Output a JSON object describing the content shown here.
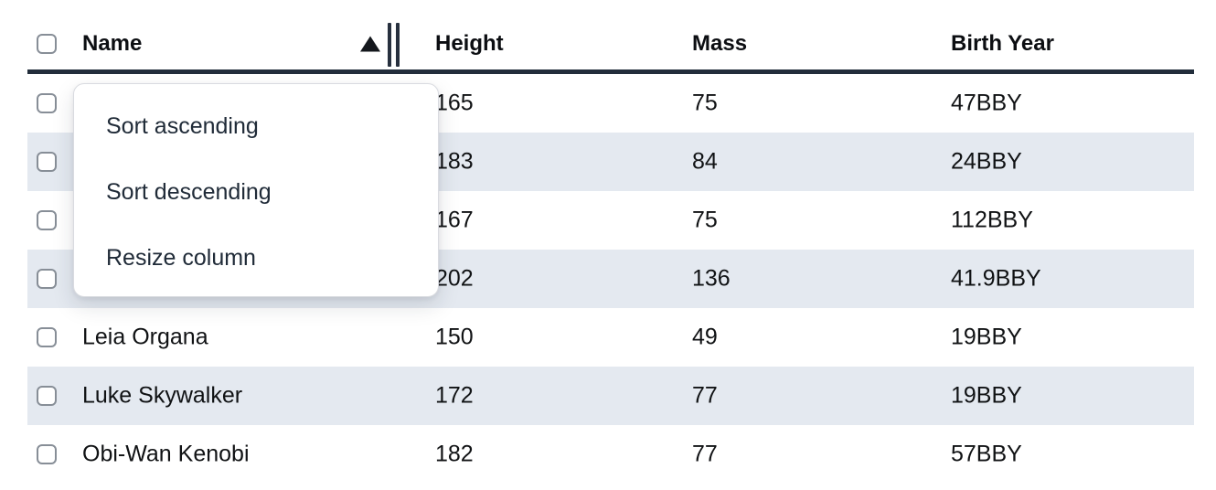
{
  "table": {
    "columns": [
      {
        "id": "name",
        "label": "Name"
      },
      {
        "id": "height",
        "label": "Height"
      },
      {
        "id": "mass",
        "label": "Mass"
      },
      {
        "id": "birth_year",
        "label": "Birth Year"
      }
    ],
    "sort": {
      "column": "Name",
      "direction": "ascending"
    },
    "rows": [
      {
        "name": "",
        "height": "165",
        "mass": "75",
        "birth_year": "47BBY"
      },
      {
        "name": "",
        "height": "183",
        "mass": "84",
        "birth_year": "24BBY"
      },
      {
        "name": "",
        "height": "167",
        "mass": "75",
        "birth_year": "112BBY"
      },
      {
        "name": "",
        "height": "202",
        "mass": "136",
        "birth_year": "41.9BBY"
      },
      {
        "name": "Leia Organa",
        "height": "150",
        "mass": "49",
        "birth_year": "19BBY"
      },
      {
        "name": "Luke Skywalker",
        "height": "172",
        "mass": "77",
        "birth_year": "19BBY"
      },
      {
        "name": "Obi-Wan Kenobi",
        "height": "182",
        "mass": "77",
        "birth_year": "57BBY"
      }
    ],
    "striped_row_indexes": [
      1,
      3,
      5
    ]
  },
  "menu": {
    "items": [
      {
        "id": "sort-ascending",
        "label": "Sort ascending"
      },
      {
        "id": "sort-descending",
        "label": "Sort descending"
      },
      {
        "id": "resize-column",
        "label": "Resize column"
      }
    ]
  },
  "icons": {
    "sort_indicator": "triangle-up",
    "resize_handle": "double-vertical-bars"
  },
  "colors": {
    "stripe": "#e4e9f0",
    "header_border": "#222d3b",
    "menu_text": "#202b38",
    "cell_text": "#101214",
    "checkbox_border": "#878e97"
  }
}
